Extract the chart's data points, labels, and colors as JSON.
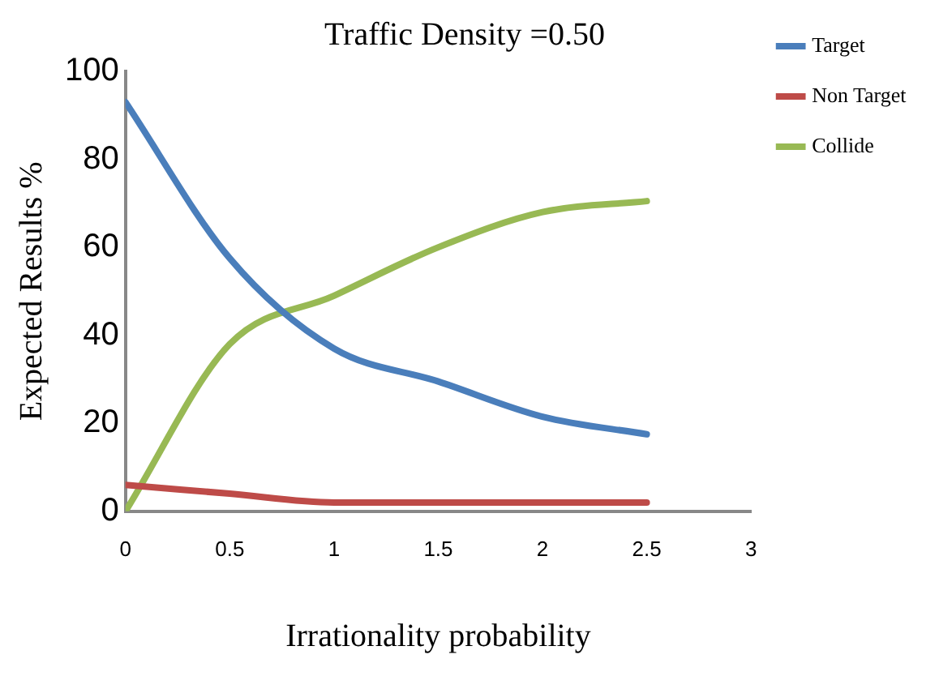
{
  "chart_data": {
    "type": "line",
    "title": "Traffic Density =0.50",
    "xlabel": "Irrationality probability",
    "ylabel": "Expected Results %",
    "x": [
      0,
      0.5,
      1,
      1.5,
      2,
      2.5
    ],
    "series": [
      {
        "name": "Target",
        "color": "#4a7ebb",
        "values": [
          93,
          57.5,
          37,
          29.5,
          21.5,
          17.5
        ]
      },
      {
        "name": "Non Target",
        "color": "#be4b48",
        "values": [
          6,
          4,
          2,
          2,
          2,
          2
        ]
      },
      {
        "name": "Collide",
        "color": "#98b954",
        "values": [
          0,
          38,
          49,
          60,
          68,
          70.5
        ]
      }
    ],
    "xlim": [
      0,
      3
    ],
    "xticks": [
      0,
      0.5,
      1,
      1.5,
      2,
      2.5,
      3
    ],
    "ylim": [
      0,
      100
    ],
    "yticks": [
      0,
      20,
      40,
      60,
      80,
      100
    ],
    "grid": false,
    "legend": "top right",
    "marker": "none",
    "line_style": "solid"
  }
}
